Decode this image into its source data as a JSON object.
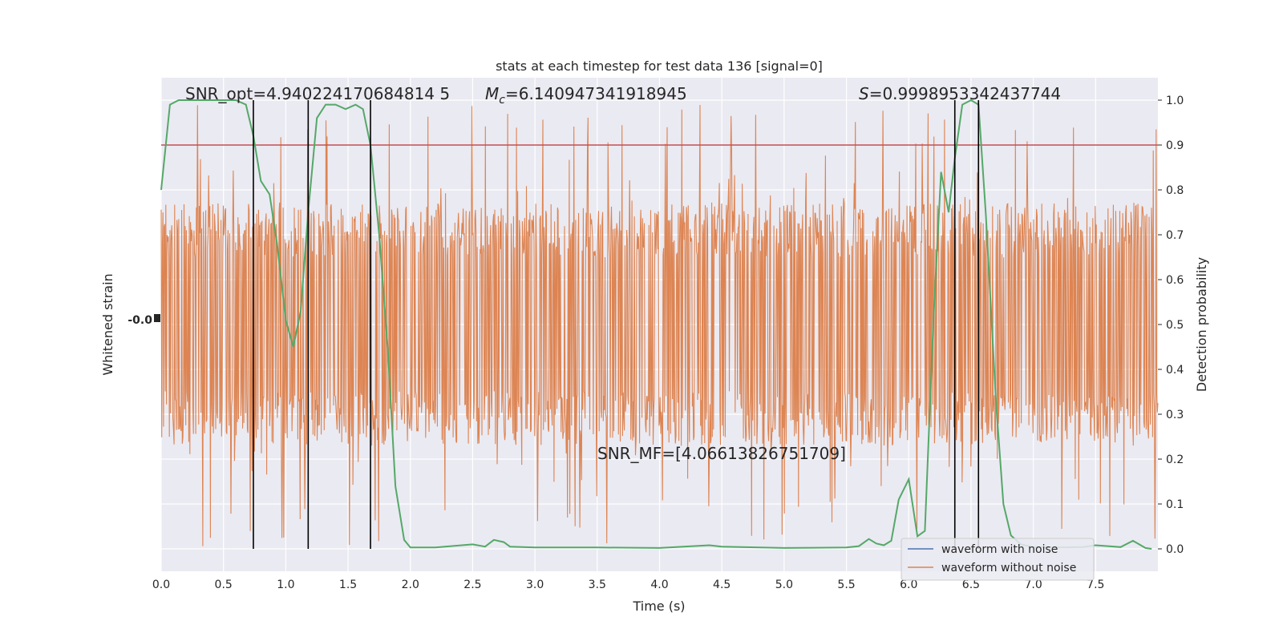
{
  "chart_data": {
    "type": "line",
    "title": "stats at each timestep for test data 136 [signal=0]",
    "xlabel": "Time (s)",
    "ylabel_left": "Whitened strain",
    "ylabel_right": "Detection probability",
    "xlim": [
      0,
      8
    ],
    "ylim_right": [
      -0.05,
      1.05
    ],
    "x_ticks": [
      "0.0",
      "0.5",
      "1.0",
      "1.5",
      "2.0",
      "2.5",
      "3.0",
      "3.5",
      "4.0",
      "4.5",
      "5.0",
      "5.5",
      "6.0",
      "6.5",
      "7.0",
      "7.5"
    ],
    "y_ticks_right": [
      "0.0",
      "0.1",
      "0.2",
      "0.3",
      "0.4",
      "0.5",
      "0.6",
      "0.7",
      "0.8",
      "0.9",
      "1.0"
    ],
    "left_axis_ticks_overlapping": "-0.0",
    "annotations": {
      "snr_opt": "SNR_opt=4.940224170684814 5",
      "mc_symbol": "M",
      "mc_subscript": "c",
      "mc_value": "=6.140947341918945",
      "s_symbol": "S",
      "s_value": "=0.9998953342437744",
      "snr_mf": "SNR_MF=[4.06613826751709]"
    },
    "threshold": 0.9,
    "vertical_lines_x": [
      0.74,
      1.18,
      1.68,
      6.37,
      6.56
    ],
    "legend": {
      "placement": "lower-right",
      "entries": [
        {
          "label": "waveform with noise",
          "color": "#4c72b0"
        },
        {
          "label": "waveform without noise",
          "color": "#dd8452"
        }
      ]
    },
    "series": [
      {
        "name": "waveform without noise",
        "color": "#dd8452",
        "band_center": 0.5,
        "band_spread": 0.27,
        "peak_max": 1.0,
        "trough_min": 0.0
      },
      {
        "name": "detection probability",
        "color": "#55a868",
        "x": [
          0.0,
          0.07,
          0.14,
          0.2,
          0.4,
          0.6,
          0.68,
          0.74,
          0.8,
          0.87,
          0.93,
          1.0,
          1.06,
          1.12,
          1.18,
          1.25,
          1.32,
          1.4,
          1.48,
          1.56,
          1.62,
          1.68,
          1.75,
          1.82,
          1.88,
          1.95,
          2.0,
          2.2,
          2.5,
          2.6,
          2.67,
          2.75,
          2.8,
          3.0,
          3.5,
          4.0,
          4.4,
          4.5,
          5.0,
          5.5,
          5.6,
          5.68,
          5.74,
          5.8,
          5.86,
          5.92,
          6.0,
          6.07,
          6.13,
          6.2,
          6.26,
          6.32,
          6.37,
          6.43,
          6.5,
          6.56,
          6.62,
          6.7,
          6.76,
          6.82,
          6.9,
          7.0,
          7.2,
          7.4,
          7.5,
          7.6,
          7.7,
          7.8,
          7.9,
          7.95
        ],
        "y": [
          0.8,
          0.99,
          1.0,
          1.0,
          1.0,
          1.0,
          0.99,
          0.92,
          0.82,
          0.79,
          0.68,
          0.51,
          0.45,
          0.53,
          0.75,
          0.96,
          0.99,
          0.99,
          0.98,
          0.99,
          0.98,
          0.9,
          0.7,
          0.44,
          0.14,
          0.02,
          0.003,
          0.003,
          0.01,
          0.005,
          0.02,
          0.015,
          0.005,
          0.003,
          0.003,
          0.002,
          0.008,
          0.005,
          0.002,
          0.003,
          0.006,
          0.022,
          0.012,
          0.008,
          0.018,
          0.11,
          0.155,
          0.028,
          0.04,
          0.52,
          0.84,
          0.75,
          0.87,
          0.99,
          1.0,
          0.99,
          0.74,
          0.33,
          0.1,
          0.03,
          0.01,
          0.004,
          0.003,
          0.004,
          0.008,
          0.006,
          0.004,
          0.018,
          0.002,
          0.0
        ]
      }
    ]
  }
}
